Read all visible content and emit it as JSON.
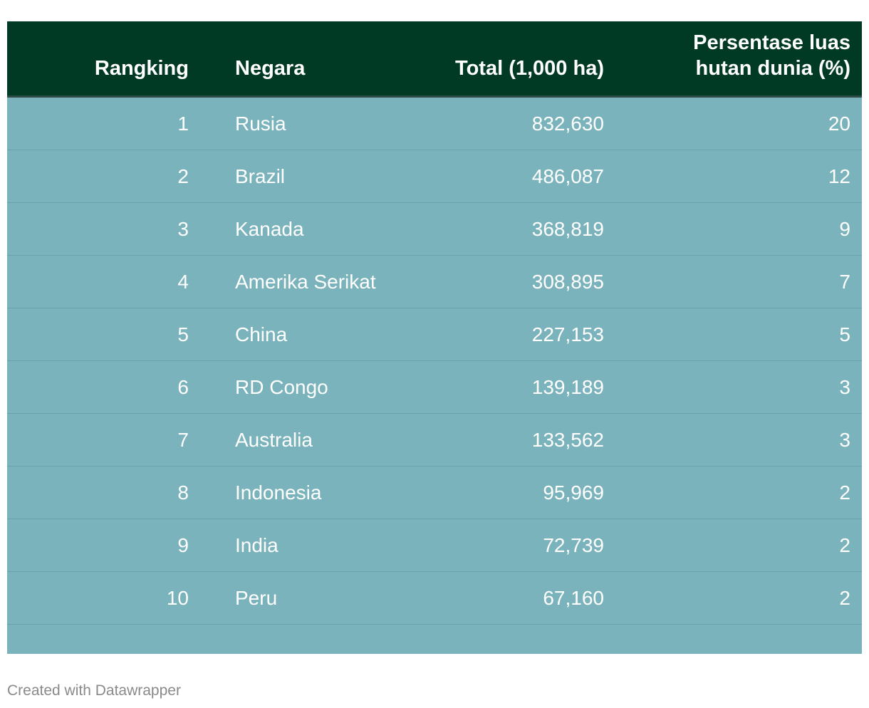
{
  "chart_data": {
    "type": "table",
    "columns": [
      "Rangking",
      "Negara",
      "Total (1,000 ha)",
      "Persentase luas hutan dunia (%)"
    ],
    "rows": [
      {
        "rank": "1",
        "country": "Rusia",
        "total": "832,630",
        "pct": "20"
      },
      {
        "rank": "2",
        "country": "Brazil",
        "total": "486,087",
        "pct": "12"
      },
      {
        "rank": "3",
        "country": "Kanada",
        "total": "368,819",
        "pct": "9"
      },
      {
        "rank": "4",
        "country": "Amerika Serikat",
        "total": "308,895",
        "pct": "7"
      },
      {
        "rank": "5",
        "country": "China",
        "total": "227,153",
        "pct": "5"
      },
      {
        "rank": "6",
        "country": "RD Congo",
        "total": "139,189",
        "pct": "3"
      },
      {
        "rank": "7",
        "country": "Australia",
        "total": "133,562",
        "pct": "3"
      },
      {
        "rank": "8",
        "country": "Indonesia",
        "total": "95,969",
        "pct": "2"
      },
      {
        "rank": "9",
        "country": "India",
        "total": "72,739",
        "pct": "2"
      },
      {
        "rank": "10",
        "country": "Peru",
        "total": "67,160",
        "pct": "2"
      }
    ]
  },
  "footer": "Created with Datawrapper",
  "colors": {
    "header_bg": "#003a24",
    "body_bg": "#7ab3bb",
    "text": "#ffffff",
    "footer_text": "#8a8a8a"
  }
}
